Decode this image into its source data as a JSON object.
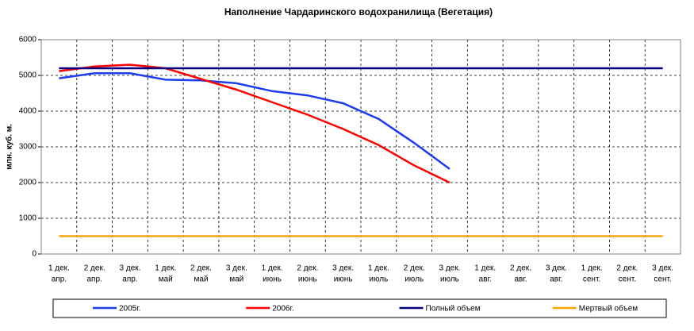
{
  "chart_data": {
    "type": "line",
    "title": "Наполнение Чардаринского водохранилища (Вегетация)",
    "y_label": "млн. куб. м.",
    "categories": [
      [
        "1 дек.",
        "апр."
      ],
      [
        "2 дек.",
        "апр."
      ],
      [
        "3 дек.",
        "апр."
      ],
      [
        "1 дек.",
        "май"
      ],
      [
        "2 дек.",
        "май"
      ],
      [
        "3 дек.",
        "май"
      ],
      [
        "1 дек.",
        "июнь"
      ],
      [
        "2 дек.",
        "июнь"
      ],
      [
        "3 дек.",
        "июнь"
      ],
      [
        "1 дек.",
        "июль"
      ],
      [
        "2 дек.",
        "июль"
      ],
      [
        "3 дек.",
        "июль"
      ],
      [
        "1 дек.",
        "авг."
      ],
      [
        "2 дек.",
        "авг."
      ],
      [
        "3 дек.",
        "авг."
      ],
      [
        "1 дек.",
        "сент."
      ],
      [
        "2 дек.",
        "сент."
      ],
      [
        "3 дек.",
        "сент."
      ]
    ],
    "series": [
      {
        "name": "2005г.",
        "color": "#1c3cf0",
        "values": [
          4920,
          5060,
          5060,
          4880,
          4860,
          4780,
          4560,
          4440,
          4220,
          3780,
          3110,
          2380,
          null,
          null,
          null,
          null,
          null,
          null
        ]
      },
      {
        "name": "2006г.",
        "color": "#ff0000",
        "values": [
          5120,
          5250,
          5300,
          5200,
          4900,
          4600,
          4250,
          3900,
          3500,
          3050,
          2480,
          2000,
          null,
          null,
          null,
          null,
          null,
          null
        ]
      },
      {
        "name": "Полный объем",
        "color": "#000080",
        "values": [
          5200,
          5200,
          5200,
          5200,
          5200,
          5200,
          5200,
          5200,
          5200,
          5200,
          5200,
          5200,
          5200,
          5200,
          5200,
          5200,
          5200,
          5200
        ]
      },
      {
        "name": "Мертвый объем",
        "color": "#ffa500",
        "values": [
          500,
          500,
          500,
          500,
          500,
          500,
          500,
          500,
          500,
          500,
          500,
          500,
          500,
          500,
          500,
          500,
          500,
          500
        ]
      }
    ],
    "ylim": [
      0,
      6000
    ],
    "yticks": [
      0,
      1000,
      2000,
      3000,
      4000,
      5000,
      6000
    ],
    "grid": true,
    "legend": "bottom"
  }
}
